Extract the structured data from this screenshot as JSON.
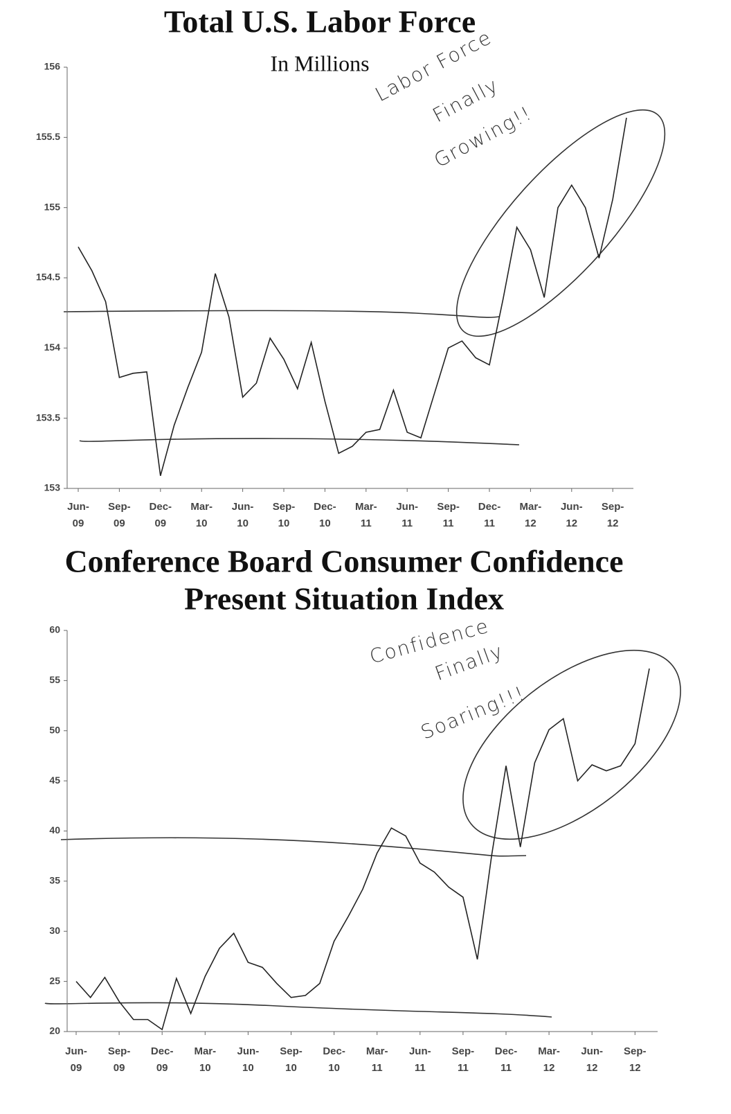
{
  "chart_data": [
    {
      "type": "line",
      "title": "Total U.S. Labor Force",
      "subtitle": "In Millions",
      "annotation": [
        "Labor Force",
        "Finally",
        "Growing!!"
      ],
      "categories": [
        "Jun-\n09",
        null,
        null,
        "Sep-\n09",
        null,
        null,
        "Dec-\n09",
        null,
        null,
        "Mar-\n10",
        null,
        null,
        "Jun-\n10",
        null,
        null,
        "Sep-\n10",
        null,
        null,
        "Dec-\n10",
        null,
        null,
        "Mar-\n11",
        null,
        null,
        "Jun-\n11",
        null,
        null,
        "Sep-\n11",
        null,
        null,
        "Dec-\n11",
        null,
        null,
        "Mar-\n12",
        null,
        null,
        "Jun-\n12",
        null,
        null,
        "Sep-\n12",
        null
      ],
      "values": [
        154.72,
        154.55,
        154.33,
        153.79,
        153.82,
        153.83,
        153.09,
        153.45,
        153.72,
        153.97,
        154.53,
        154.22,
        153.65,
        153.75,
        154.07,
        153.92,
        153.71,
        154.04,
        153.62,
        153.25,
        153.3,
        153.4,
        153.42,
        153.7,
        153.4,
        153.36,
        153.68,
        154.0,
        154.05,
        153.93,
        153.88,
        154.35,
        154.86,
        154.7,
        154.36,
        155.0,
        155.16,
        155.0,
        154.64,
        155.06,
        155.64
      ],
      "color": "#222222",
      "ylim": [
        153,
        156
      ],
      "yticks": [
        153,
        153.5,
        154,
        154.5,
        155,
        155.5,
        156
      ],
      "grid": false
    },
    {
      "type": "line",
      "title": "Conference Board Consumer Confidence",
      "subtitle": "Present Situation Index",
      "annotation": [
        "Confidence",
        "Finally",
        "Soaring!!!"
      ],
      "categories": [
        "Jun-\n09",
        null,
        null,
        "Sep-\n09",
        null,
        null,
        "Dec-\n09",
        null,
        null,
        "Mar-\n10",
        null,
        null,
        "Jun-\n10",
        null,
        null,
        "Sep-\n10",
        null,
        null,
        "Dec-\n10",
        null,
        null,
        "Mar-\n11",
        null,
        null,
        "Jun-\n11",
        null,
        null,
        "Sep-\n11",
        null,
        null,
        "Dec-\n11",
        null,
        null,
        "Mar-\n12",
        null,
        null,
        "Jun-\n12",
        null,
        null,
        "Sep-\n12",
        null
      ],
      "values": [
        25.0,
        23.4,
        25.4,
        23.0,
        21.2,
        21.2,
        20.2,
        25.3,
        21.8,
        25.5,
        28.3,
        29.8,
        26.9,
        26.4,
        24.8,
        23.4,
        23.6,
        24.8,
        29.0,
        31.5,
        34.2,
        37.8,
        40.3,
        39.5,
        36.8,
        35.9,
        34.4,
        33.4,
        27.2,
        37.6,
        46.5,
        38.4,
        46.8,
        50.1,
        51.2,
        45.0,
        46.6,
        46.0,
        46.5,
        48.7,
        56.2
      ],
      "color": "#222222",
      "ylim": [
        20,
        60
      ],
      "yticks": [
        20,
        25,
        30,
        35,
        40,
        45,
        50,
        55,
        60
      ],
      "grid": false
    }
  ]
}
